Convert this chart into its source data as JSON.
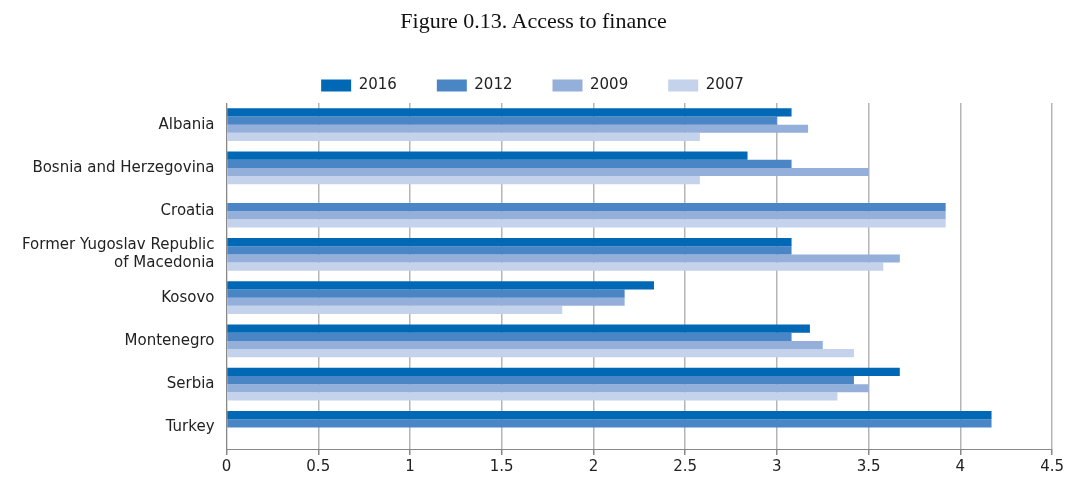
{
  "chart_data": {
    "type": "bar",
    "orientation": "horizontal",
    "title": "Figure 0.13. Access to finance",
    "categories": [
      "Albania",
      "Bosnia and Herzegovina",
      "Croatia",
      "Former Yugoslav Republic of Macedonia",
      "Kosovo",
      "Montenegro",
      "Serbia",
      "Turkey"
    ],
    "series": [
      {
        "name": "2016",
        "color": "#0068b4",
        "values": [
          3.08,
          2.84,
          null,
          3.08,
          2.33,
          3.18,
          3.67,
          4.17
        ]
      },
      {
        "name": "2012",
        "color": "#4a86c5",
        "values": [
          3.0,
          3.08,
          3.92,
          3.08,
          2.17,
          3.08,
          3.42,
          4.17
        ]
      },
      {
        "name": "2009",
        "color": "#93afda",
        "values": [
          3.17,
          3.5,
          3.92,
          3.67,
          2.17,
          3.25,
          3.5,
          null
        ]
      },
      {
        "name": "2007",
        "color": "#c5d2eb",
        "values": [
          2.58,
          2.58,
          3.92,
          3.58,
          1.83,
          3.42,
          3.33,
          null
        ]
      }
    ],
    "xlim": [
      0,
      4.5
    ],
    "xticks": [
      0,
      0.5,
      1,
      1.5,
      2,
      2.5,
      3,
      3.5,
      4,
      4.5
    ],
    "grid": "x",
    "legend": "top"
  }
}
